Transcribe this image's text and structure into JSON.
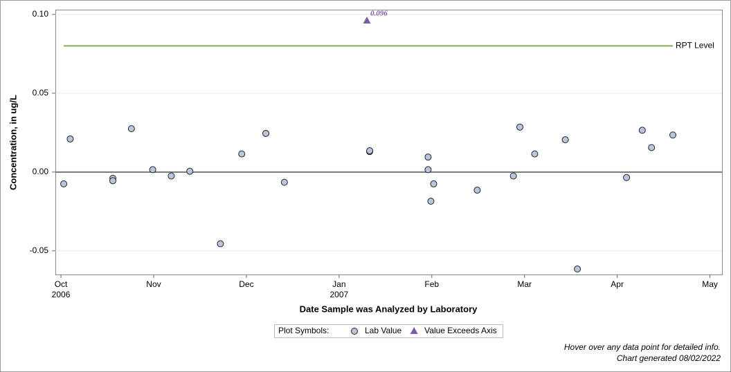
{
  "chart_data": {
    "type": "scatter",
    "x_label": "Date Sample was Analyzed by Laboratory",
    "y_label": "Concentration, in ug/L",
    "xlim": [
      -0.06,
      7.13
    ],
    "xticks": [
      {
        "value": 0,
        "label": "Oct"
      },
      {
        "value": 1,
        "label": "Nov"
      },
      {
        "value": 2,
        "label": "Dec"
      },
      {
        "value": 3,
        "label": "Jan"
      },
      {
        "value": 4,
        "label": "Feb"
      },
      {
        "value": 5,
        "label": "Mar"
      },
      {
        "value": 6,
        "label": "Apr"
      },
      {
        "value": 7,
        "label": "May"
      }
    ],
    "xtick_years": [
      {
        "value": 0,
        "label": "2006"
      },
      {
        "value": 3,
        "label": "2007"
      }
    ],
    "ylim": [
      -0.065,
      0.103
    ],
    "yticks": [
      {
        "value": 0.1,
        "label": "0.10"
      },
      0.05,
      {
        "value": 0,
        "label": "0.00"
      },
      -0.05
    ],
    "grid": true,
    "series": [
      {
        "name": "Lab Value",
        "marker": "circle",
        "color": "#b9c5dd",
        "x": [
          0.03,
          0.1,
          0.56,
          0.56,
          0.76,
          0.99,
          1.19,
          1.39,
          1.72,
          1.95,
          2.21,
          2.41,
          3.33,
          3.33,
          3.96,
          3.96,
          3.99,
          4.02,
          4.49,
          4.88,
          4.95,
          5.11,
          5.44,
          5.57,
          6.1,
          6.27,
          6.37,
          6.6
        ],
        "values": [
          -0.0075,
          0.021,
          -0.004,
          -0.0055,
          0.0275,
          0.0015,
          -0.0025,
          0.0005,
          -0.0455,
          0.0115,
          0.0245,
          -0.0065,
          0.013,
          0.0135,
          0.0095,
          0.0015,
          -0.0185,
          -0.0075,
          -0.0115,
          -0.0025,
          0.0285,
          0.0115,
          0.0205,
          -0.0615,
          -0.0035,
          0.0265,
          0.0155,
          0.0235
        ]
      },
      {
        "name": "Value Exceeds Axis",
        "marker": "triangle",
        "color": "#7b5aa6",
        "x": [
          3.3
        ],
        "values": [
          0.096
        ]
      }
    ],
    "reference_lines": [
      {
        "label": "RPT Level",
        "value": 0.08,
        "x": [
          0.03,
          6.6
        ],
        "color": "#8aac55"
      }
    ],
    "legend_title": "Plot Symbols:",
    "notes": [
      "Hover over any data point for detailed info.",
      "Chart generated 08/02/2022"
    ]
  }
}
